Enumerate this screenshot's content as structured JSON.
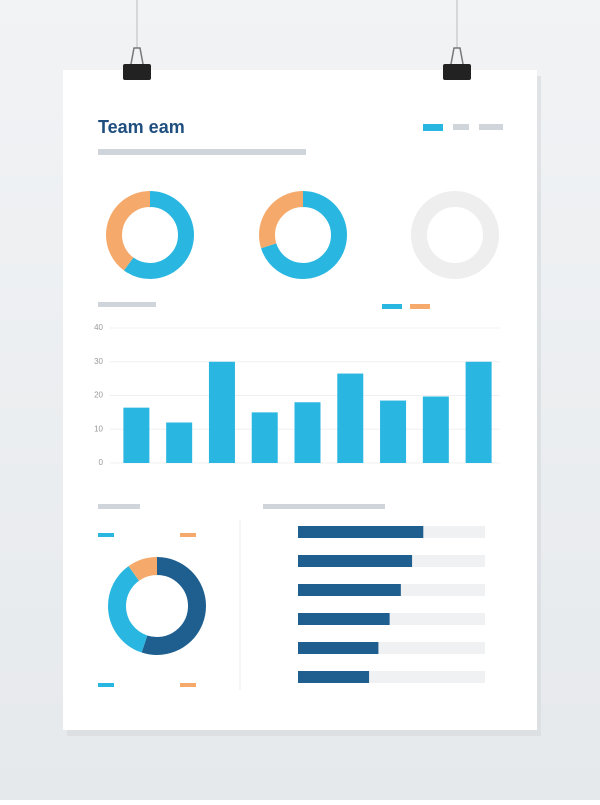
{
  "header": {
    "title": "Team eam"
  },
  "chart_data": [
    {
      "type": "donut",
      "values": [
        60,
        40
      ],
      "colors": [
        "#29b6e0",
        "#f5a96b"
      ]
    },
    {
      "type": "donut",
      "values": [
        70,
        30
      ],
      "colors": [
        "#29b6e0",
        "#f5a96b"
      ]
    },
    {
      "type": "donut",
      "values": [
        100
      ],
      "colors": [
        "#eeeeee"
      ]
    },
    {
      "type": "bar",
      "categories": [
        null,
        null,
        null,
        null,
        null,
        null,
        null,
        null,
        null
      ],
      "values": [
        16.4,
        12,
        30,
        15,
        18,
        26.5,
        18.5,
        19.7,
        30
      ],
      "color": "#29b6e0",
      "ylim": [
        0,
        40
      ],
      "yticks": [
        0,
        10,
        20,
        30,
        40
      ],
      "grid": true
    },
    {
      "type": "donut",
      "values": [
        55,
        35,
        10
      ],
      "colors": [
        "#1f5f8f",
        "#29b6e0",
        "#f5a96b"
      ]
    },
    {
      "type": "hbar",
      "values": [
        67,
        61,
        55,
        49,
        43,
        38
      ],
      "color": "#1f5f8f",
      "xlim": [
        0,
        100
      ]
    }
  ]
}
